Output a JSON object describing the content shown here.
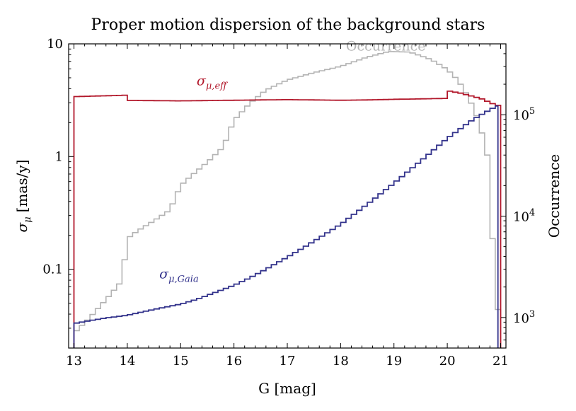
{
  "chart_data": {
    "type": "line",
    "drawstyle": "steps-mid",
    "title": "Proper motion dispersion of the background stars",
    "xlabel": "G [mag]",
    "ylabel": "σμ [mas/y]",
    "ylabel_parts": {
      "sym": "σ",
      "sub": "μ",
      "rest": "[mas/y]"
    },
    "y2label": "Occurrence",
    "xlim": [
      12.9,
      21.1
    ],
    "ylim": [
      0.02,
      10
    ],
    "ylim_right": [
      500,
      500000
    ],
    "yscale": "log",
    "y2scale": "log",
    "xticks": [
      13,
      14,
      15,
      16,
      17,
      18,
      19,
      20,
      21
    ],
    "xtick_labels": [
      "13",
      "14",
      "15",
      "16",
      "17",
      "18",
      "19",
      "20",
      "21"
    ],
    "yticks": [
      0.1,
      1,
      10
    ],
    "ytick_labels": [
      "0.1",
      "1",
      "10"
    ],
    "y2ticks": [
      1000,
      10000,
      100000
    ],
    "y2tick_labels": [
      {
        "base": "10",
        "exp": "3"
      },
      {
        "base": "10",
        "exp": "4"
      },
      {
        "base": "10",
        "exp": "5"
      }
    ],
    "series": [
      {
        "name": "σμ,eff",
        "label_parts": {
          "sym": "σ",
          "sub": "μ,eff"
        },
        "label_at": [
          15.3,
          4.3
        ],
        "color": "#b2182b",
        "axis": "left",
        "x": [
          13.0,
          13.5,
          13.95,
          14.0,
          15.0,
          15.5,
          16.0,
          16.5,
          17.0,
          17.5,
          18.0,
          18.5,
          19.0,
          19.5,
          19.95,
          20.0,
          20.05,
          20.1,
          20.2,
          20.3,
          20.4,
          20.5,
          20.6,
          20.7,
          20.8,
          20.9,
          21.0
        ],
        "y": [
          3.4,
          3.45,
          3.5,
          3.15,
          3.12,
          3.14,
          3.16,
          3.18,
          3.2,
          3.18,
          3.16,
          3.18,
          3.22,
          3.25,
          3.28,
          3.6,
          3.8,
          3.75,
          3.7,
          3.6,
          3.5,
          3.4,
          3.3,
          3.2,
          3.0,
          2.9,
          2.8
        ]
      },
      {
        "name": "σμ,Gaia",
        "label_parts": {
          "sym": "σ",
          "sub": "μ,Gaia"
        },
        "label_at": [
          14.6,
          0.083
        ],
        "color": "#33338c",
        "axis": "left",
        "x": [
          13.0,
          13.3,
          13.6,
          14.0,
          14.3,
          14.6,
          15.0,
          15.3,
          15.6,
          16.0,
          16.3,
          16.6,
          17.0,
          17.3,
          17.6,
          18.0,
          18.3,
          18.6,
          19.0,
          19.3,
          19.6,
          20.0,
          20.2,
          20.4,
          20.6,
          20.8,
          20.95
        ],
        "y": [
          0.033,
          0.035,
          0.037,
          0.039,
          0.042,
          0.045,
          0.049,
          0.054,
          0.061,
          0.072,
          0.084,
          0.1,
          0.128,
          0.155,
          0.19,
          0.25,
          0.32,
          0.41,
          0.58,
          0.76,
          1.0,
          1.45,
          1.7,
          2.0,
          2.3,
          2.6,
          2.85
        ]
      },
      {
        "name": "Occurrence",
        "label_parts": {
          "sym": "Occurrence",
          "sub": ""
        },
        "label_at": [
          18.1,
          430000
        ],
        "color": "#b3b3b3",
        "axis": "right",
        "x": [
          13.0,
          13.3,
          13.6,
          13.9,
          14.0,
          14.2,
          14.5,
          14.8,
          15.0,
          15.2,
          15.5,
          15.8,
          16.0,
          16.3,
          16.6,
          17.0,
          17.5,
          18.0,
          18.5,
          18.9,
          19.3,
          19.7,
          20.0,
          20.2,
          20.4,
          20.6,
          20.75,
          20.85,
          20.95,
          21.0
        ],
        "y": [
          700,
          1000,
          1500,
          2300,
          6000,
          7200,
          9000,
          11500,
          20000,
          25000,
          34000,
          48000,
          88000,
          130000,
          175000,
          220000,
          260000,
          300000,
          370000,
          420000,
          415000,
          350000,
          280000,
          220000,
          150000,
          85000,
          40000,
          6000,
          1200,
          500
        ]
      }
    ]
  }
}
